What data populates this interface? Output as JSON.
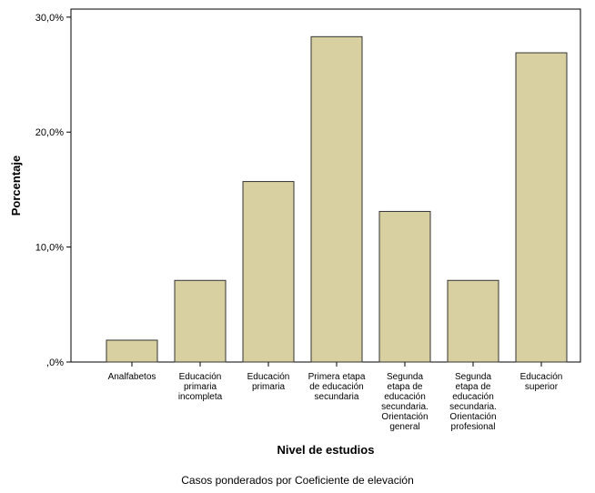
{
  "chart_data": {
    "type": "bar",
    "xlabel": "Nivel de estudios",
    "ylabel": "Porcentaje",
    "footnote": "Casos ponderados por Coeficiente de elevación",
    "ylim": [
      0,
      30.7
    ],
    "yticks": [
      {
        "value": 0,
        "label": ",0%"
      },
      {
        "value": 10,
        "label": "10,0%"
      },
      {
        "value": 20,
        "label": "20,0%"
      },
      {
        "value": 30,
        "label": "30,0%"
      }
    ],
    "grid": false,
    "bar_color": "#d8d0a0",
    "bar_stroke": "#333333",
    "categories": [
      {
        "label_lines": [
          "Analfabetos"
        ]
      },
      {
        "label_lines": [
          "Educación",
          "primaria",
          "incompleta"
        ]
      },
      {
        "label_lines": [
          "Educación",
          "primaria"
        ]
      },
      {
        "label_lines": [
          "Primera etapa",
          "de educación",
          "secundaria"
        ]
      },
      {
        "label_lines": [
          "Segunda",
          "etapa de",
          "educación",
          "secundaria.",
          "Orientación",
          "general"
        ]
      },
      {
        "label_lines": [
          "Segunda",
          "etapa de",
          "educación",
          "secundaria.",
          "Orientación",
          "profesional"
        ]
      },
      {
        "label_lines": [
          "Educación",
          "superior"
        ]
      }
    ],
    "values": [
      1.9,
      7.1,
      15.7,
      28.3,
      13.1,
      7.1,
      26.9
    ]
  }
}
